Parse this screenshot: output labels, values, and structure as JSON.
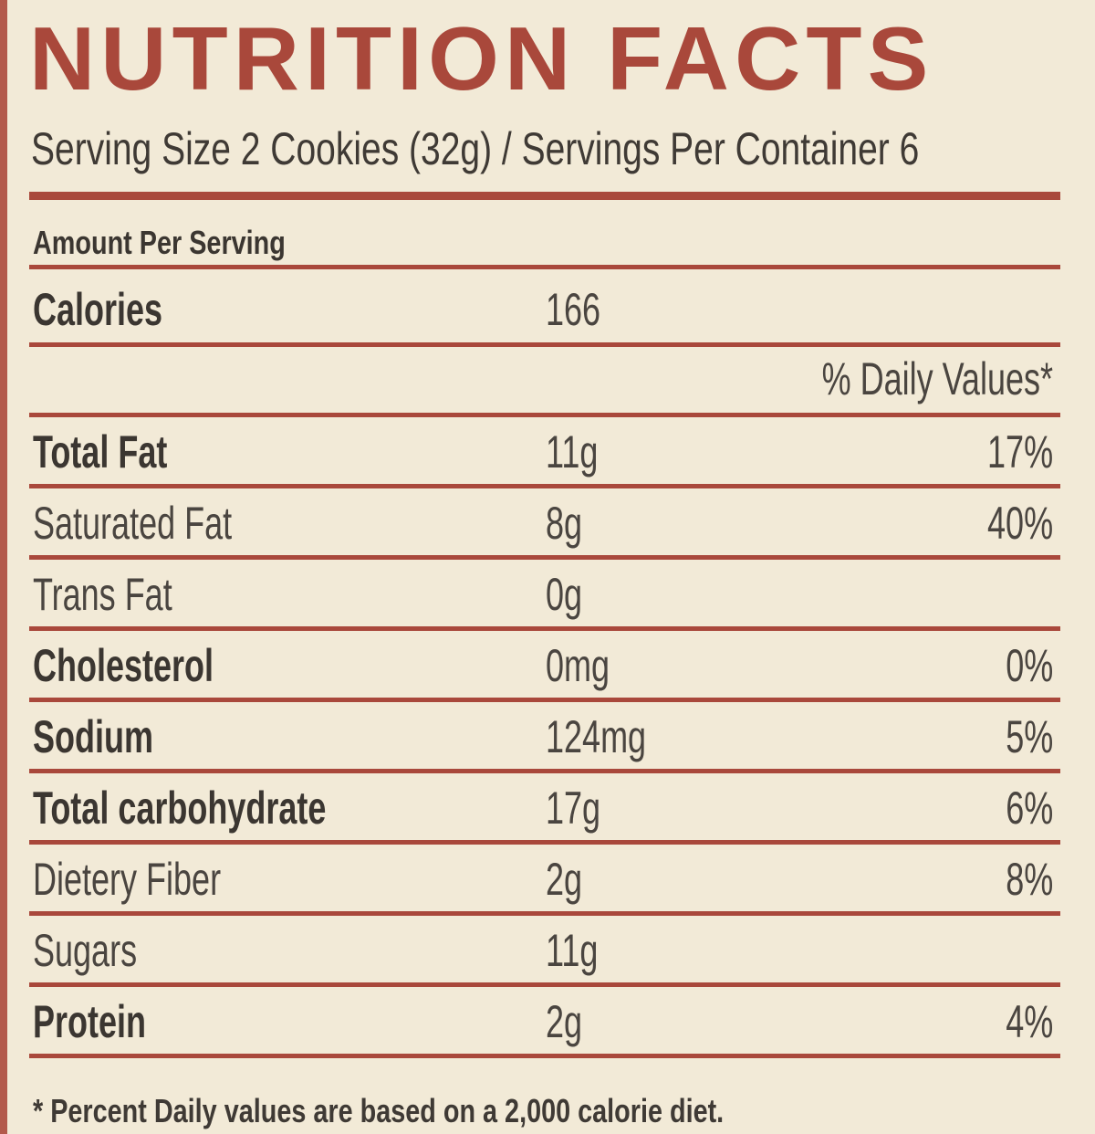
{
  "title": "NUTRITION FACTS",
  "serving_line": "Serving Size 2 Cookies (32g) / Servings Per Container 6",
  "amount_per_serving": "Amount Per Serving",
  "calories": {
    "label": "Calories",
    "value": "166"
  },
  "daily_values_header": "% Daily Values*",
  "rows": [
    {
      "label": "Total Fat",
      "amount": "11g",
      "dv": "17%"
    },
    {
      "label": "Saturated Fat",
      "amount": "8g",
      "dv": "40%"
    },
    {
      "label": "Trans Fat",
      "amount": "0g",
      "dv": ""
    },
    {
      "label": "Cholesterol",
      "amount": "0mg",
      "dv": "0%"
    },
    {
      "label": "Sodium",
      "amount": "124mg",
      "dv": "5%"
    },
    {
      "label": "Total carbohydrate",
      "amount": "17g",
      "dv": "6%"
    },
    {
      "label": "Dietery Fiber",
      "amount": "2g",
      "dv": "8%"
    },
    {
      "label": "Sugars",
      "amount": "11g",
      "dv": ""
    },
    {
      "label": "Protein",
      "amount": "2g",
      "dv": "4%"
    }
  ],
  "footnote": "* Percent Daily values are based on a 2,000 calorie diet.",
  "colors": {
    "accent": "#a9483b",
    "background": "#f2ead7",
    "text": "#3b3631"
  }
}
